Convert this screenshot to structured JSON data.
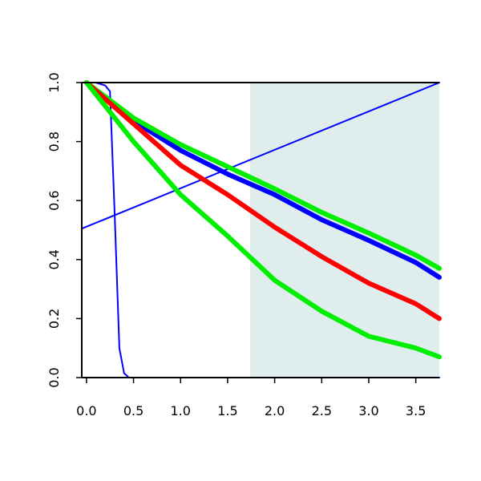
{
  "chart_data": {
    "type": "line",
    "title": "",
    "xlabel": "",
    "ylabel": "",
    "xlim": [
      -0.05,
      3.75
    ],
    "ylim": [
      0,
      1
    ],
    "grid": false,
    "legend": "none",
    "x_ticks": [
      "0.0",
      "0.5",
      "1.0",
      "1.5",
      "2.0",
      "2.5",
      "3.0",
      "3.5"
    ],
    "y_ticks": [
      "0.0",
      "0.2",
      "0.4",
      "0.6",
      "0.8",
      "1.0"
    ],
    "shaded_region": {
      "x_from": 1.74,
      "x_to": 3.75,
      "color": "#e0eded"
    },
    "series": [
      {
        "color": "#0000ff",
        "stroke": "thin",
        "x": [
          -0.05,
          3.75
        ],
        "y": [
          0.505,
          1.0
        ]
      },
      {
        "color": "#0000ff",
        "stroke": "thin",
        "x": [
          0.0,
          0.1,
          0.2,
          0.25,
          0.3,
          0.35,
          0.4,
          0.45,
          0.5,
          1.0,
          3.75
        ],
        "y": [
          1.0,
          1.0,
          0.99,
          0.97,
          0.55,
          0.1,
          0.015,
          0.0,
          0.0,
          0.0,
          0.0
        ]
      },
      {
        "color": "#0000ff",
        "stroke": "thick",
        "x": [
          0.0,
          0.5,
          1.0,
          1.5,
          2.0,
          2.5,
          3.0,
          3.5,
          3.75
        ],
        "y": [
          1.0,
          0.87,
          0.77,
          0.69,
          0.62,
          0.535,
          0.465,
          0.39,
          0.34
        ]
      },
      {
        "color": "#00ee00",
        "stroke": "thick",
        "x": [
          0.0,
          0.5,
          1.0,
          1.5,
          2.0,
          2.5,
          3.0,
          3.5,
          3.75
        ],
        "y": [
          1.0,
          0.88,
          0.79,
          0.715,
          0.64,
          0.56,
          0.49,
          0.415,
          0.37
        ]
      },
      {
        "color": "#ff0000",
        "stroke": "thick",
        "x": [
          0.0,
          0.5,
          1.0,
          1.5,
          2.0,
          2.5,
          3.0,
          3.5,
          3.75
        ],
        "y": [
          1.0,
          0.86,
          0.72,
          0.62,
          0.51,
          0.41,
          0.32,
          0.25,
          0.2
        ]
      },
      {
        "color": "#00ee00",
        "stroke": "thick",
        "x": [
          0.0,
          0.5,
          1.0,
          1.5,
          2.0,
          2.5,
          3.0,
          3.5,
          3.75
        ],
        "y": [
          1.0,
          0.8,
          0.62,
          0.48,
          0.33,
          0.225,
          0.14,
          0.1,
          0.07
        ]
      }
    ]
  }
}
